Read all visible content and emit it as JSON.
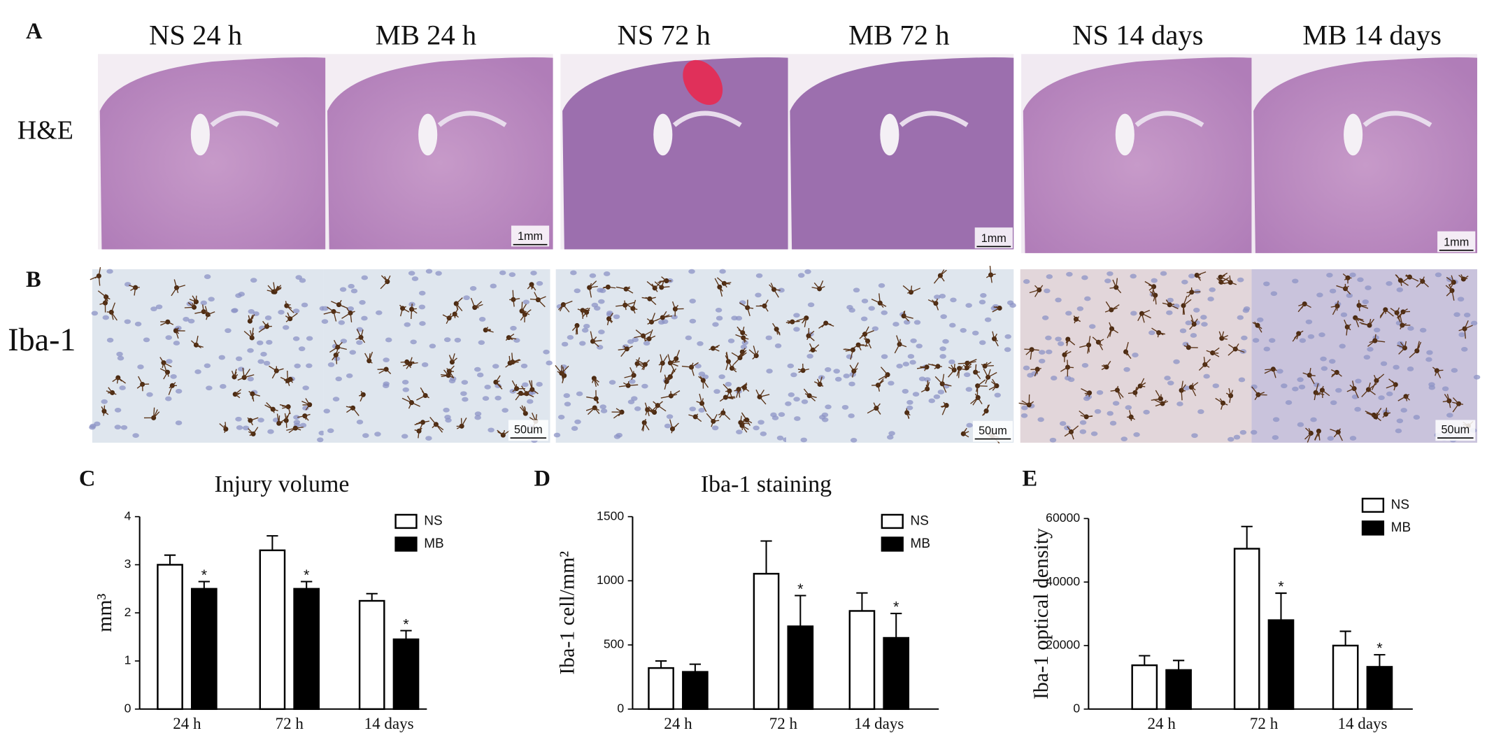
{
  "panels": {
    "A": {
      "label": "A",
      "row_label": "H&E",
      "titles": [
        "NS 24 h",
        "MB 24 h",
        "NS 72 h",
        "MB 72 h",
        "NS 14 days",
        "MB 14 days"
      ],
      "scale_bar": "1mm"
    },
    "B": {
      "label": "B",
      "row_label": "Iba-1",
      "scale_bar": "50um"
    }
  },
  "chart_data": [
    {
      "type": "bar",
      "panel_label": "C",
      "title": "Injury volume",
      "y_label": "mm³",
      "categories": [
        "24 h",
        "72 h",
        "14 days"
      ],
      "series": [
        {
          "name": "NS",
          "color": "#ffffff",
          "values": [
            3.0,
            3.3,
            2.25
          ],
          "errors": [
            0.2,
            0.3,
            0.15
          ]
        },
        {
          "name": "MB",
          "color": "#000000",
          "values": [
            2.5,
            2.5,
            1.45
          ],
          "errors": [
            0.15,
            0.15,
            0.18
          ],
          "significance": [
            "*",
            "*",
            "*"
          ]
        }
      ],
      "ylim": [
        0,
        4
      ],
      "yticks": [
        0,
        1,
        2,
        3,
        4
      ]
    },
    {
      "type": "bar",
      "panel_label": "D",
      "title": "Iba-1 staining",
      "y_label": "Iba-1 cell/mm²",
      "categories": [
        "24 h",
        "72 h",
        "14 days"
      ],
      "series": [
        {
          "name": "NS",
          "color": "#ffffff",
          "values": [
            320,
            1055,
            765
          ],
          "errors": [
            55,
            255,
            140
          ]
        },
        {
          "name": "MB",
          "color": "#000000",
          "values": [
            290,
            645,
            555
          ],
          "errors": [
            60,
            240,
            190
          ],
          "significance": [
            null,
            "*",
            "*"
          ]
        }
      ],
      "ylim": [
        0,
        1500
      ],
      "yticks": [
        0,
        500,
        1000,
        1500
      ]
    },
    {
      "type": "bar",
      "panel_label": "E",
      "y_label": "Iba-1 optical density",
      "categories": [
        "24 h",
        "72 h",
        "14 days"
      ],
      "series": [
        {
          "name": "NS",
          "color": "#ffffff",
          "values": [
            13800,
            50500,
            20000
          ],
          "errors": [
            3000,
            7000,
            4500
          ]
        },
        {
          "name": "MB",
          "color": "#000000",
          "values": [
            12300,
            28000,
            13300
          ],
          "errors": [
            3000,
            8500,
            3800
          ],
          "significance": [
            null,
            "*",
            "*"
          ]
        }
      ],
      "ylim": [
        0,
        60000
      ],
      "yticks": [
        0,
        20000,
        40000,
        60000
      ]
    }
  ]
}
